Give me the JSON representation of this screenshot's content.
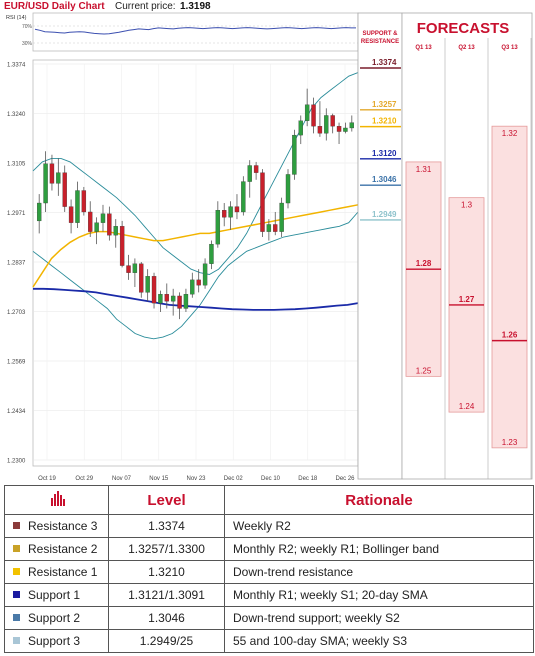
{
  "header": {
    "title": "EUR/USD Daily Chart",
    "price_label": "Current price:",
    "price_value": "1.3198"
  },
  "rsi": {
    "label": "RSI (14)",
    "levels": [
      "70%",
      "30%"
    ],
    "values": [
      58,
      55,
      51,
      50,
      49,
      48,
      47,
      49,
      50,
      51,
      50,
      48,
      46,
      45,
      44,
      45,
      47,
      49,
      52,
      55,
      57,
      59,
      58,
      57,
      60,
      62,
      61,
      60,
      59,
      61,
      62,
      63,
      62,
      61,
      60,
      61,
      62,
      63,
      62,
      61,
      60,
      61,
      62,
      63,
      62,
      61,
      60,
      59,
      60,
      61,
      62,
      63,
      62,
      61,
      60,
      61,
      62,
      63,
      62,
      61,
      60,
      61,
      62,
      63,
      62,
      62
    ]
  },
  "levels_panel": {
    "title": "SUPPORT & RESISTANCE",
    "levels": [
      {
        "label": "1.3374",
        "value": 1.3374,
        "color": "#7a1d2b"
      },
      {
        "label": "1.3257",
        "value": 1.3257,
        "color": "#e3a82b"
      },
      {
        "label": "1.3210",
        "value": 1.321,
        "color": "#f2b400"
      },
      {
        "label": "1.3120",
        "value": 1.312,
        "color": "#1a2aa8"
      },
      {
        "label": "1.3046",
        "value": 1.3046,
        "color": "#3b72a8"
      },
      {
        "label": "1.2949",
        "value": 1.2949,
        "color": "#8fc3cc"
      }
    ]
  },
  "forecasts": {
    "title": "FORECASTS",
    "quarters": [
      {
        "label": "Q1 13",
        "high": 1.31,
        "mid": 1.28,
        "low": 1.25,
        "high_label": "1.31",
        "mid_label": "1.28",
        "low_label": "1.25"
      },
      {
        "label": "Q2 13",
        "high": 1.3,
        "mid": 1.27,
        "low": 1.24,
        "high_label": "1.3",
        "mid_label": "1.27",
        "low_label": "1.24"
      },
      {
        "label": "Q3 13",
        "high": 1.32,
        "mid": 1.26,
        "low": 1.23,
        "high_label": "1.32",
        "mid_label": "1.26",
        "low_label": "1.23"
      }
    ]
  },
  "chart_data": {
    "type": "candlestick",
    "title": "EUR/USD Daily Chart",
    "ylim": [
      1.2266,
      1.3374
    ],
    "y_ticks": [
      "1.3374",
      "1.3240",
      "1.3105",
      "1.2971",
      "1.2837",
      "1.2703",
      "1.2569",
      "1.2434",
      "1.2300"
    ],
    "x_ticks": [
      "Oct 19",
      "Oct 29",
      "Nov 07",
      "Nov 15",
      "Nov 23",
      "Dec 02",
      "Dec 10",
      "Dec 18",
      "Dec 26"
    ],
    "candles": [
      [
        1.2935,
        1.301,
        1.29,
        1.2985
      ],
      [
        1.2985,
        1.313,
        1.296,
        1.3095
      ],
      [
        1.3095,
        1.312,
        1.302,
        1.304
      ],
      [
        1.304,
        1.311,
        1.3005,
        1.307
      ],
      [
        1.307,
        1.309,
        1.296,
        1.2975
      ],
      [
        1.2975,
        1.2995,
        1.29,
        1.293
      ],
      [
        1.293,
        1.3045,
        1.2915,
        1.302
      ],
      [
        1.302,
        1.303,
        1.295,
        1.296
      ],
      [
        1.296,
        1.299,
        1.289,
        1.2905
      ],
      [
        1.2905,
        1.2945,
        1.287,
        1.293
      ],
      [
        1.293,
        1.298,
        1.2905,
        1.2955
      ],
      [
        1.2955,
        1.2975,
        1.288,
        1.2895
      ],
      [
        1.2895,
        1.294,
        1.286,
        1.292
      ],
      [
        1.292,
        1.2935,
        1.2805,
        1.281
      ],
      [
        1.281,
        1.284,
        1.277,
        1.279
      ],
      [
        1.279,
        1.283,
        1.275,
        1.2815
      ],
      [
        1.2815,
        1.282,
        1.272,
        1.2735
      ],
      [
        1.2735,
        1.28,
        1.271,
        1.278
      ],
      [
        1.278,
        1.279,
        1.269,
        1.2705
      ],
      [
        1.2705,
        1.274,
        1.268,
        1.273
      ],
      [
        1.273,
        1.276,
        1.269,
        1.271
      ],
      [
        1.271,
        1.2745,
        1.267,
        1.2725
      ],
      [
        1.2725,
        1.2735,
        1.266,
        1.269
      ],
      [
        1.269,
        1.2745,
        1.268,
        1.273
      ],
      [
        1.273,
        1.279,
        1.272,
        1.277
      ],
      [
        1.277,
        1.28,
        1.2735,
        1.2755
      ],
      [
        1.2755,
        1.283,
        1.2745,
        1.2815
      ],
      [
        1.2815,
        1.288,
        1.28,
        1.287
      ],
      [
        1.287,
        1.299,
        1.286,
        1.2965
      ],
      [
        1.2965,
        1.2985,
        1.292,
        1.2945
      ],
      [
        1.2945,
        1.299,
        1.291,
        1.2975
      ],
      [
        1.2975,
        1.301,
        1.294,
        1.296
      ],
      [
        1.296,
        1.306,
        1.295,
        1.3045
      ],
      [
        1.3045,
        1.3105,
        1.3,
        1.309
      ],
      [
        1.309,
        1.31,
        1.305,
        1.307
      ],
      [
        1.307,
        1.308,
        1.289,
        1.2905
      ],
      [
        1.2905,
        1.294,
        1.288,
        1.2925
      ],
      [
        1.2925,
        1.296,
        1.2895,
        1.2905
      ],
      [
        1.2905,
        1.3,
        1.289,
        1.2985
      ],
      [
        1.2985,
        1.308,
        1.297,
        1.3065
      ],
      [
        1.3065,
        1.319,
        1.305,
        1.3175
      ],
      [
        1.3175,
        1.323,
        1.315,
        1.3215
      ],
      [
        1.3215,
        1.3305,
        1.32,
        1.326
      ],
      [
        1.326,
        1.328,
        1.318,
        1.32
      ],
      [
        1.32,
        1.327,
        1.317,
        1.318
      ],
      [
        1.318,
        1.325,
        1.316,
        1.323
      ],
      [
        1.323,
        1.3235,
        1.318,
        1.32
      ],
      [
        1.32,
        1.321,
        1.315,
        1.3185
      ],
      [
        1.3185,
        1.321,
        1.318,
        1.3195
      ],
      [
        1.3195,
        1.323,
        1.3185,
        1.321
      ]
    ],
    "series": [
      {
        "name": "",
        "color": "#2a8c9a",
        "values": [
          1.3075,
          1.31,
          1.311,
          1.311,
          1.31,
          1.308,
          1.306,
          1.304,
          1.302,
          1.3,
          1.2975,
          1.295,
          1.292,
          1.289,
          1.286,
          1.284,
          1.282,
          1.28,
          1.279,
          1.2785,
          1.28,
          1.283,
          1.286,
          1.29,
          1.295,
          1.3,
          1.305,
          1.31,
          1.315,
          1.32,
          1.325,
          1.328,
          1.33,
          1.332,
          1.334,
          1.335
        ]
      },
      {
        "name": "",
        "color": "#2a8c9a",
        "values": [
          1.285,
          1.283,
          1.281,
          1.279,
          1.277,
          1.275,
          1.273,
          1.271,
          1.269,
          1.266,
          1.264,
          1.262,
          1.261,
          1.2605,
          1.261,
          1.262,
          1.264,
          1.267,
          1.27,
          1.274,
          1.278,
          1.281,
          1.283,
          1.285,
          1.286,
          1.287,
          1.288,
          1.289,
          1.2895,
          1.29,
          1.2905,
          1.291,
          1.2915,
          1.292,
          1.293,
          1.296
        ]
      },
      {
        "name": "",
        "color": "#f2b400",
        "values": [
          1.275,
          1.279,
          1.283,
          1.2855,
          1.2875,
          1.289,
          1.29,
          1.2905,
          1.2905,
          1.29,
          1.2895,
          1.289,
          1.2885,
          1.288,
          1.288,
          1.2885,
          1.289,
          1.2895,
          1.29,
          1.29,
          1.2905,
          1.291,
          1.2915,
          1.292,
          1.2925,
          1.293,
          1.2935,
          1.294,
          1.2945,
          1.295,
          1.2955,
          1.296,
          1.2965,
          1.297,
          1.2975,
          1.298
        ]
      },
      {
        "name": "",
        "color": "#1a2aa8",
        "values": [
          1.2745,
          1.2745,
          1.2744,
          1.2742,
          1.274,
          1.2738,
          1.2735,
          1.273,
          1.2725,
          1.272,
          1.2715,
          1.271,
          1.2705,
          1.27,
          1.2698,
          1.2696,
          1.2694,
          1.2692,
          1.269,
          1.2688,
          1.2687,
          1.2686,
          1.2686,
          1.2686,
          1.2687,
          1.2688,
          1.269,
          1.2692,
          1.2695,
          1.2698,
          1.27,
          1.2705
        ]
      }
    ]
  },
  "table": {
    "headers": [
      "Level",
      "Rationale"
    ],
    "rows": [
      {
        "name": "Resistance 3",
        "color": "#8b3a3a",
        "level": "1.3374",
        "rationale": "Weekly R2"
      },
      {
        "name": "Resistance 2",
        "color": "#c9a227",
        "level": "1.3257/1.3300",
        "rationale": "Monthly R2; weekly R1; Bollinger band"
      },
      {
        "name": "Resistance 1",
        "color": "#f2c200",
        "level": "1.3210",
        "rationale": "Down-trend resistance"
      },
      {
        "name": "Support 1",
        "color": "#1a1aa0",
        "level": "1.3121/1.3091",
        "rationale": "Monthly R1; weekly S1; 20-day SMA"
      },
      {
        "name": "Support 2",
        "color": "#4a7aa8",
        "level": "1.3046",
        "rationale": "Down-trend support; weekly S2"
      },
      {
        "name": "Support 3",
        "color": "#a9c6d6",
        "level": "1.2949/25",
        "rationale": "55 and 100-day SMA; weekly S3"
      }
    ]
  }
}
